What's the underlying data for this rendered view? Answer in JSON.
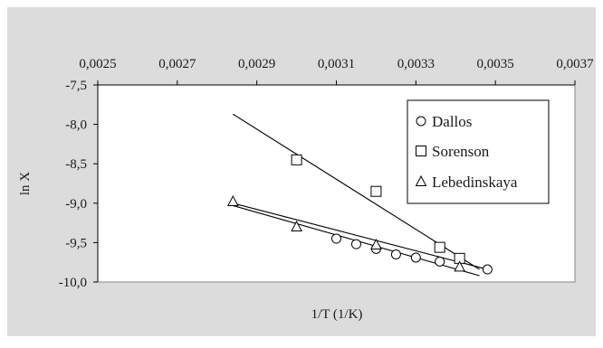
{
  "chart_data": {
    "type": "scatter",
    "title": "",
    "xlabel": "1/T (1/K)",
    "ylabel": "ln X",
    "xlim": [
      0.0025,
      0.0037
    ],
    "ylim": [
      -10.0,
      -7.5
    ],
    "x_ticks": [
      "0,0025",
      "0,0027",
      "0,0029",
      "0,0031",
      "0,0033",
      "0,0035",
      "0,0037"
    ],
    "y_ticks": [
      "-7,5",
      "-8,0",
      "-8,5",
      "-9,0",
      "-9,5",
      "-10,0"
    ],
    "x_axis_position": "top",
    "grid": false,
    "legend_position": "right",
    "background_color": "#dcdcdc",
    "plot_background_color": "#ffffff",
    "series": [
      {
        "name": "Dallos",
        "marker": "circle",
        "points": [
          [
            0.0031,
            -9.45
          ],
          [
            0.00315,
            -9.52
          ],
          [
            0.0032,
            -9.58
          ],
          [
            0.00325,
            -9.65
          ],
          [
            0.0033,
            -9.69
          ],
          [
            0.00336,
            -9.74
          ],
          [
            0.00348,
            -9.84
          ]
        ],
        "fit_line": [
          [
            0.00284,
            -9.0
          ],
          [
            0.00348,
            -9.84
          ]
        ]
      },
      {
        "name": "Sorenson",
        "marker": "square",
        "points": [
          [
            0.003,
            -8.45
          ],
          [
            0.0032,
            -8.85
          ],
          [
            0.00336,
            -9.56
          ],
          [
            0.00341,
            -9.7
          ]
        ],
        "fit_line": [
          [
            0.00284,
            -7.87
          ],
          [
            0.00346,
            -9.84
          ]
        ]
      },
      {
        "name": "Lebedinskaya",
        "marker": "triangle",
        "points": [
          [
            0.00284,
            -8.98
          ],
          [
            0.003,
            -9.3
          ],
          [
            0.0032,
            -9.53
          ],
          [
            0.00341,
            -9.81
          ]
        ],
        "fit_line": [
          [
            0.00284,
            -9.03
          ],
          [
            0.00346,
            -9.92
          ]
        ]
      }
    ]
  }
}
